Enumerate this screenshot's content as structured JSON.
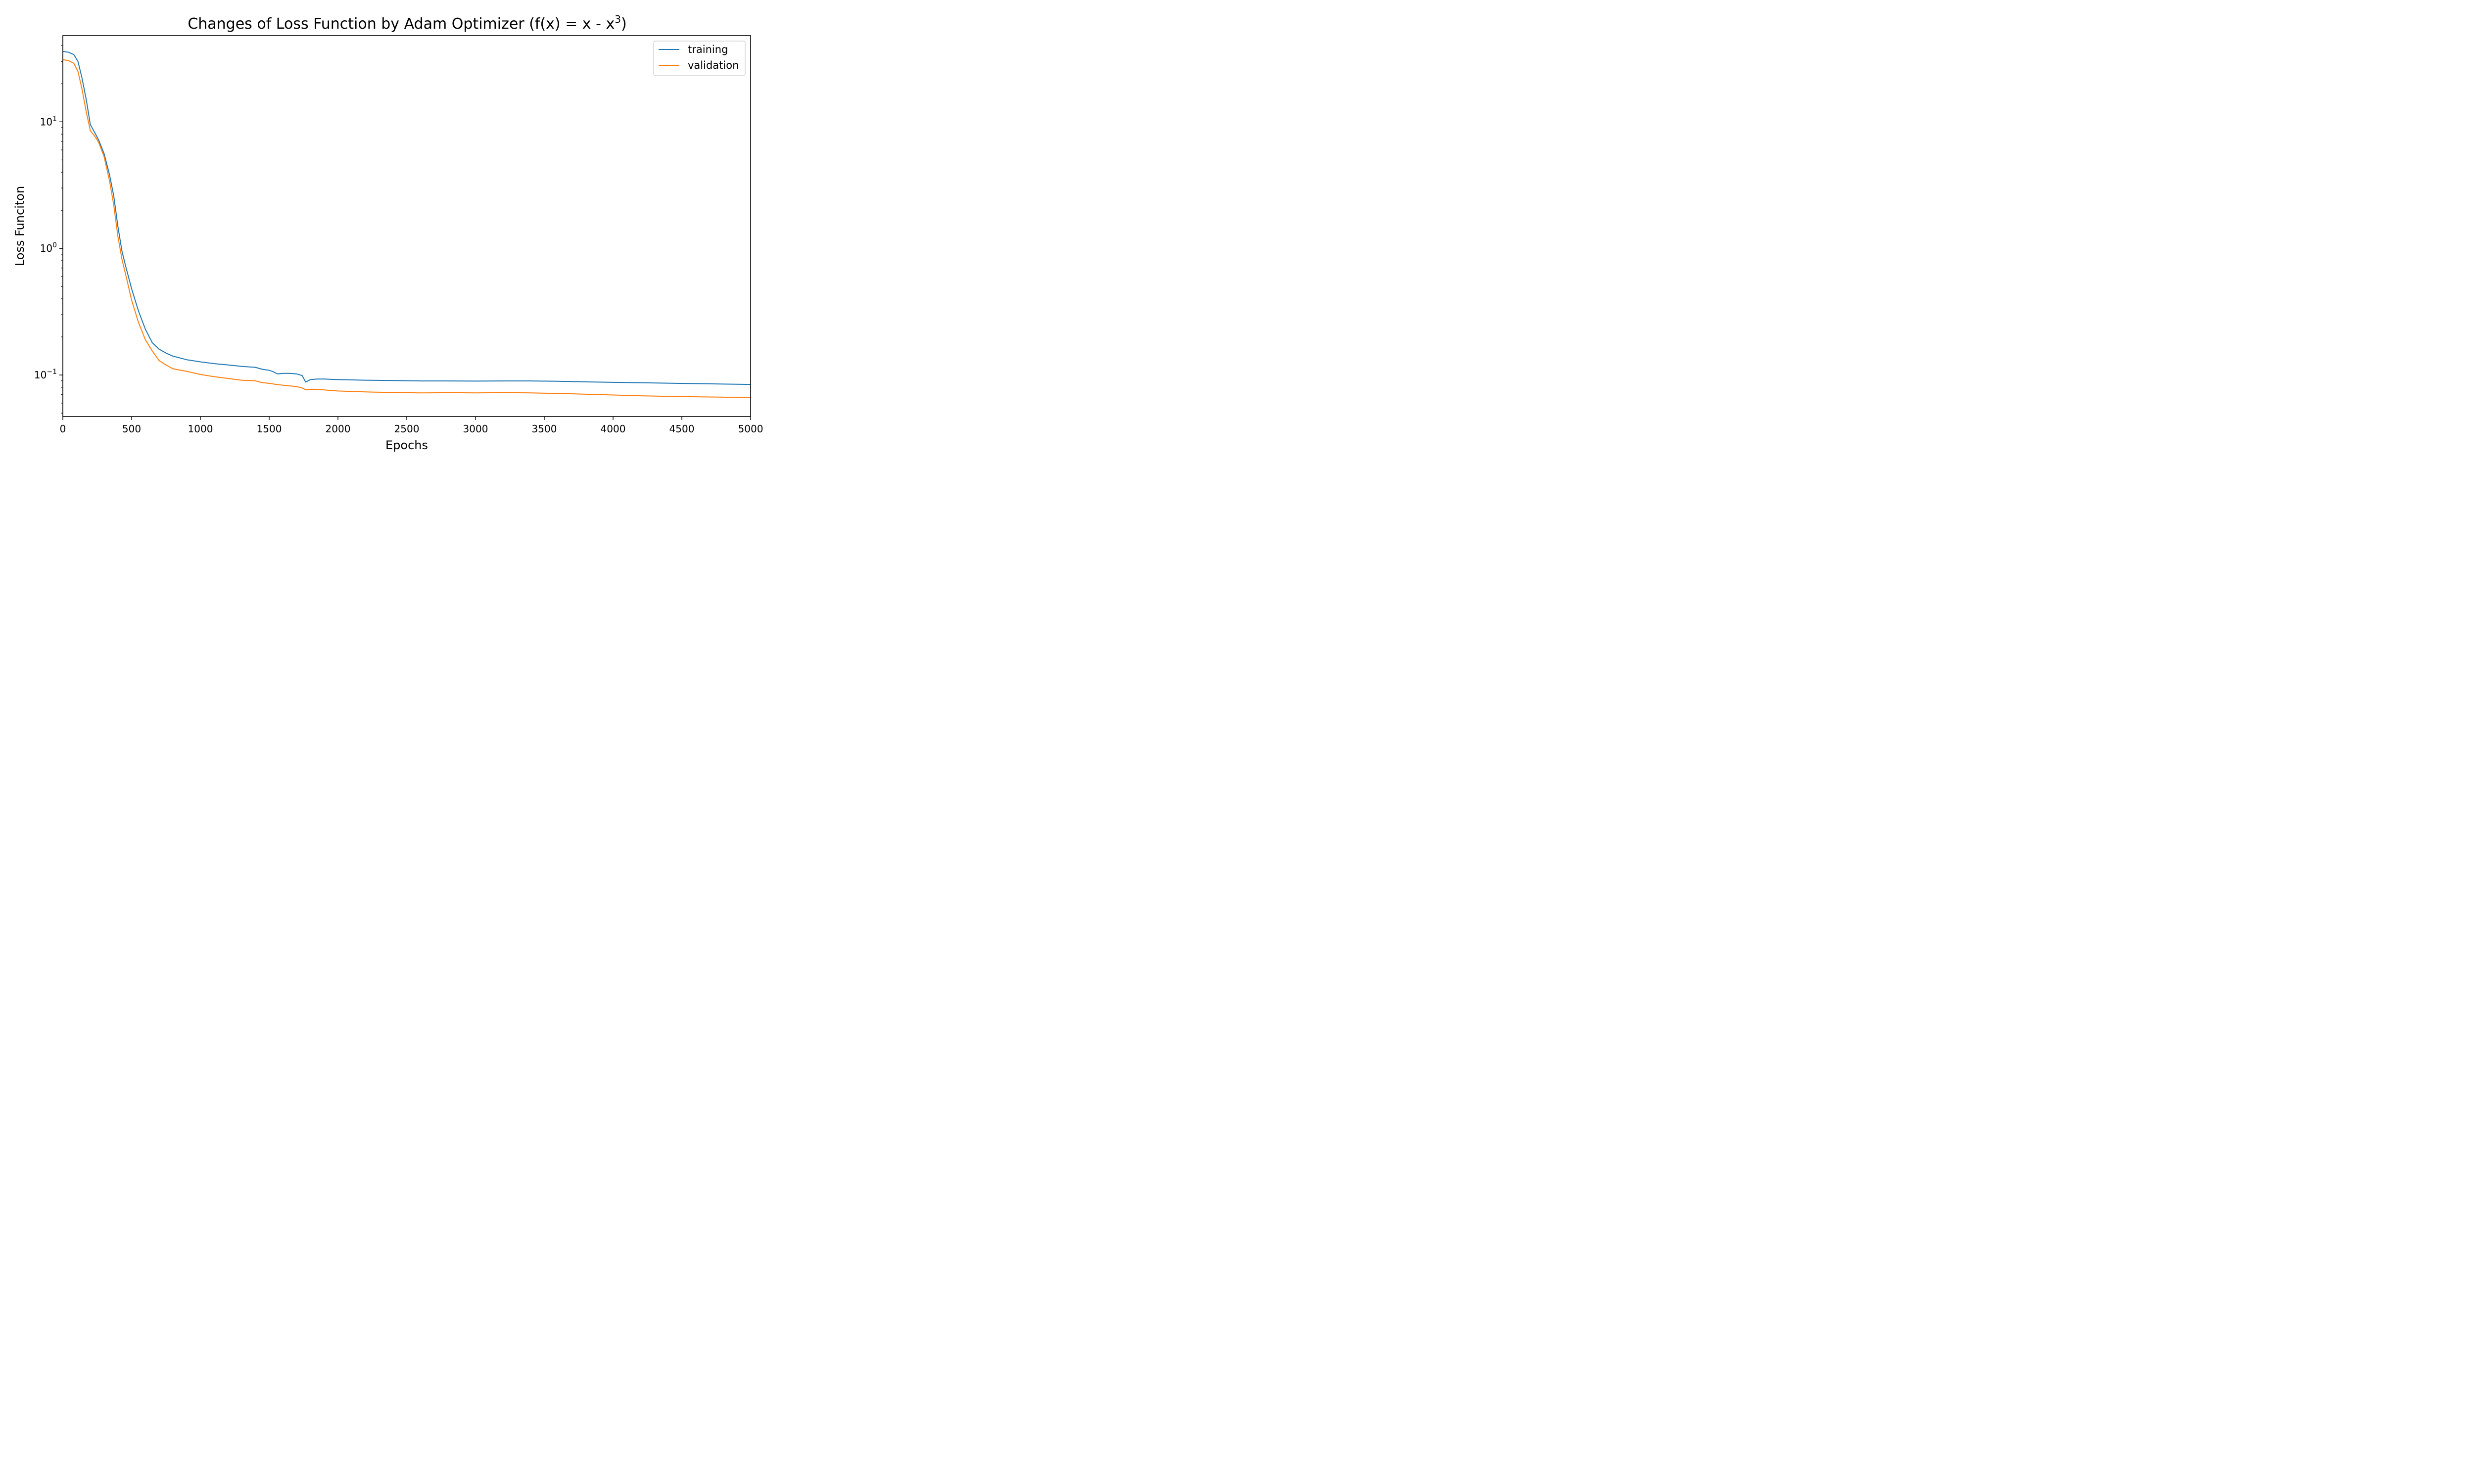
{
  "chart_data": {
    "type": "line",
    "title": "Changes of Loss Function by Adam Optimizer (f(x) = x - x",
    "title_superscript": "3",
    "title_end": ")",
    "xlabel": "Epochs",
    "ylabel": "Loss Funciton",
    "xlim": [
      0,
      5000
    ],
    "ylim": [
      0.047,
      48
    ],
    "yscale": "log",
    "grid": false,
    "legend_position": "top-right",
    "x_ticks": [
      0,
      500,
      1000,
      1500,
      2000,
      2500,
      3000,
      3500,
      4000,
      4500,
      5000
    ],
    "x_tick_labels": [
      "0",
      "500",
      "1000",
      "1500",
      "2000",
      "2500",
      "3000",
      "3500",
      "4000",
      "4500",
      "5000"
    ],
    "y_ticks": [
      {
        "value": 10,
        "base": "10",
        "exp": "1"
      },
      {
        "value": 1,
        "base": "10",
        "exp": "0"
      },
      {
        "value": 0.1,
        "base": "10",
        "exp": "−1"
      }
    ],
    "series": [
      {
        "name": "training",
        "color": "#1f77b4",
        "x": [
          0,
          40,
          80,
          110,
          140,
          170,
          200,
          230,
          260,
          300,
          340,
          370,
          400,
          430,
          460,
          500,
          550,
          600,
          650,
          700,
          750,
          800,
          900,
          1000,
          1100,
          1200,
          1300,
          1400,
          1450,
          1500,
          1530,
          1560,
          1600,
          1650,
          1700,
          1740,
          1765,
          1800,
          1850,
          1900,
          2000,
          2200,
          2400,
          2600,
          2800,
          3000,
          3200,
          3400,
          3600,
          3800,
          4000,
          4200,
          4400,
          4600,
          4800,
          5000
        ],
        "y": [
          36,
          35.5,
          34,
          30,
          22,
          15,
          9.5,
          8.3,
          7.2,
          5.6,
          3.8,
          2.6,
          1.5,
          0.95,
          0.7,
          0.48,
          0.32,
          0.23,
          0.18,
          0.16,
          0.149,
          0.141,
          0.132,
          0.127,
          0.123,
          0.12,
          0.117,
          0.115,
          0.111,
          0.109,
          0.106,
          0.102,
          0.103,
          0.103,
          0.102,
          0.099,
          0.088,
          0.092,
          0.093,
          0.093,
          0.092,
          0.091,
          0.0905,
          0.0898,
          0.0898,
          0.0895,
          0.0898,
          0.0898,
          0.0893,
          0.0882,
          0.0875,
          0.0868,
          0.0862,
          0.0855,
          0.0848,
          0.0843
        ]
      },
      {
        "name": "validation",
        "color": "#ff7f0e",
        "x": [
          0,
          40,
          80,
          110,
          140,
          170,
          200,
          220,
          240,
          260,
          300,
          340,
          370,
          400,
          430,
          460,
          500,
          550,
          600,
          650,
          700,
          750,
          800,
          900,
          1000,
          1100,
          1200,
          1300,
          1400,
          1450,
          1500,
          1530,
          1560,
          1600,
          1650,
          1700,
          1740,
          1765,
          1800,
          1850,
          1900,
          2000,
          2200,
          2400,
          2600,
          2800,
          3000,
          3200,
          3400,
          3600,
          3800,
          4000,
          4200,
          4400,
          4600,
          4800,
          5000
        ],
        "y": [
          31,
          30.5,
          29,
          25,
          18,
          12,
          8.5,
          8.0,
          7.5,
          6.9,
          5.3,
          3.4,
          2.2,
          1.25,
          0.82,
          0.6,
          0.39,
          0.26,
          0.19,
          0.155,
          0.13,
          0.12,
          0.112,
          0.107,
          0.101,
          0.097,
          0.094,
          0.091,
          0.09,
          0.087,
          0.086,
          0.085,
          0.084,
          0.083,
          0.082,
          0.081,
          0.079,
          0.0765,
          0.0772,
          0.077,
          0.0762,
          0.0748,
          0.0735,
          0.0727,
          0.0722,
          0.0725,
          0.0722,
          0.0725,
          0.0722,
          0.0715,
          0.0705,
          0.0695,
          0.0685,
          0.0678,
          0.0673,
          0.0668,
          0.0663
        ]
      }
    ]
  }
}
